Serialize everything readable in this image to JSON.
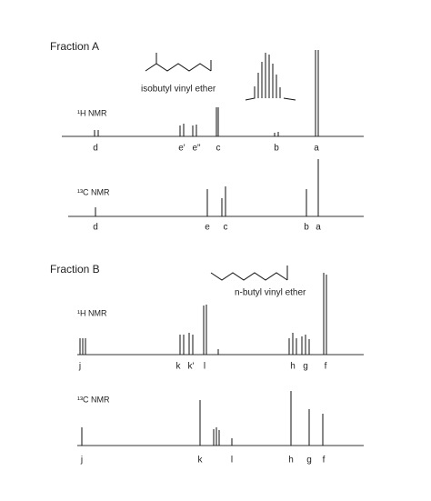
{
  "panels": [
    {
      "title": "Fraction A",
      "molecule": "isobutyl vinyl ether",
      "spectra": [
        {
          "label": "¹H NMR",
          "peak_labels": [
            "d",
            "e'",
            "e\"",
            "c",
            "b",
            "a"
          ]
        },
        {
          "label": "¹³C NMR",
          "peak_labels": [
            "d",
            "e",
            "c",
            "b",
            "a"
          ]
        }
      ]
    },
    {
      "title": "Fraction B",
      "molecule": "n-butyl vinyl ether",
      "spectra": [
        {
          "label": "¹H NMR",
          "peak_labels": [
            "j",
            "k",
            "k'",
            "l",
            "h",
            "g",
            "f"
          ]
        },
        {
          "label": "¹³C NMR",
          "peak_labels": [
            "j",
            "k",
            "l",
            "h",
            "g",
            "f"
          ]
        }
      ]
    }
  ]
}
